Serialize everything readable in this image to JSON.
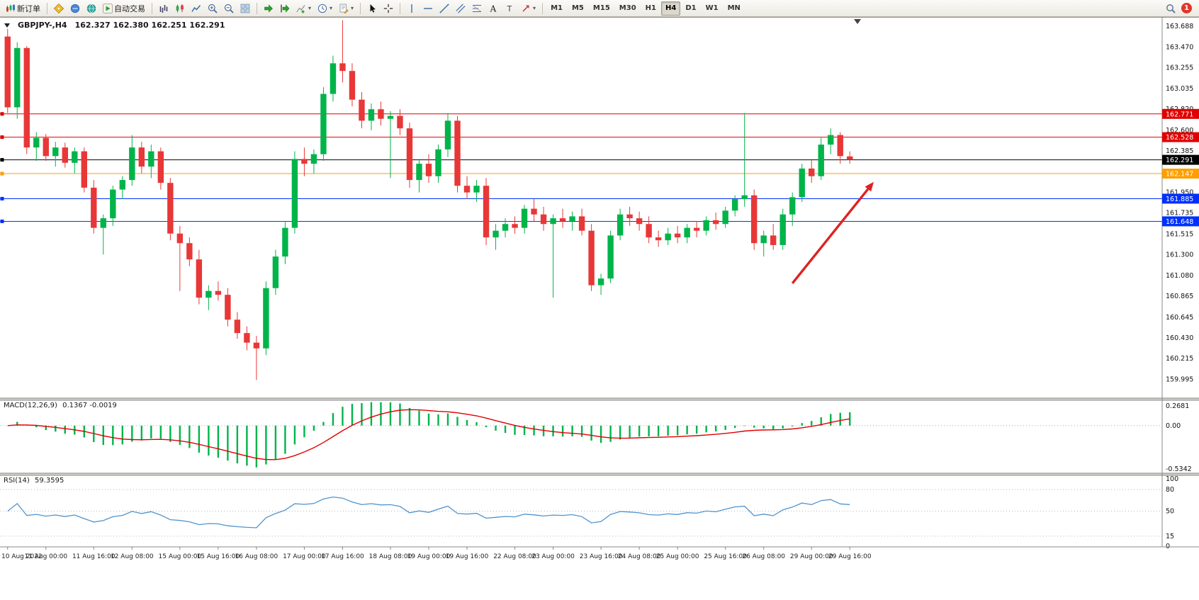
{
  "app": {
    "notification_count": "1"
  },
  "toolbar": {
    "buttons": [
      {
        "type": "button",
        "name": "new-order",
        "glyph": "new-order",
        "label": "新订单"
      },
      {
        "type": "sep"
      },
      {
        "type": "button",
        "name": "metaeditor",
        "glyph": "compass"
      },
      {
        "type": "button",
        "name": "market-watch",
        "glyph": "chat"
      },
      {
        "type": "button",
        "name": "navigator",
        "glyph": "globe"
      },
      {
        "type": "button",
        "name": "autotrading",
        "glyph": "play",
        "label": "自动交易"
      },
      {
        "type": "sep"
      },
      {
        "type": "button",
        "name": "chart-bars",
        "glyph": "bars"
      },
      {
        "type": "button",
        "name": "chart-candlesticks",
        "glyph": "candles"
      },
      {
        "type": "button",
        "name": "chart-line",
        "glyph": "linechart"
      },
      {
        "type": "button",
        "name": "zoom-in",
        "glyph": "zoom-in"
      },
      {
        "type": "button",
        "name": "zoom-out",
        "glyph": "zoom-out"
      },
      {
        "type": "button",
        "name": "tile-windows",
        "glyph": "grid"
      },
      {
        "type": "sep"
      },
      {
        "type": "button",
        "name": "auto-scroll",
        "glyph": "autoscroll"
      },
      {
        "type": "button",
        "name": "chart-shift",
        "glyph": "shift"
      },
      {
        "type": "button",
        "name": "indicators-list",
        "glyph": "indicator",
        "dropdown": true
      },
      {
        "type": "button",
        "name": "periods",
        "glyph": "clock",
        "dropdown": true
      },
      {
        "type": "button",
        "name": "templates",
        "glyph": "template",
        "dropdown": true
      },
      {
        "type": "sep"
      },
      {
        "type": "button",
        "name": "cursor",
        "glyph": "cursor"
      },
      {
        "type": "button",
        "name": "crosshair",
        "glyph": "crosshair"
      },
      {
        "type": "sep"
      },
      {
        "type": "button",
        "name": "vertical-line",
        "glyph": "vline"
      },
      {
        "type": "button",
        "name": "horizontal-line",
        "glyph": "hline"
      },
      {
        "type": "button",
        "name": "trendline",
        "glyph": "trend"
      },
      {
        "type": "button",
        "name": "equidistant-channel",
        "glyph": "channel"
      },
      {
        "type": "button",
        "name": "fibonacci-retracement",
        "glyph": "fibo"
      },
      {
        "type": "button",
        "name": "text",
        "glyph": "textA"
      },
      {
        "type": "button",
        "name": "text-label",
        "glyph": "textT"
      },
      {
        "type": "button",
        "name": "arrows",
        "glyph": "arrows",
        "dropdown": true
      },
      {
        "type": "sep"
      },
      {
        "type": "timeframes"
      }
    ],
    "timeframes": [
      "M1",
      "M5",
      "M15",
      "M30",
      "H1",
      "H4",
      "D1",
      "W1",
      "MN"
    ],
    "active_timeframe": "H4"
  },
  "chart_data": {
    "type": "candlestick",
    "symbol": "GBPJPY-",
    "period": "H4",
    "title": "GBPJPY-,H4",
    "ohlc_text": "162.327 162.380 162.251 162.291",
    "colors": {
      "bull": "#00b44a",
      "bear": "#e83737",
      "current_price": "#000000",
      "resistance": "#e00000",
      "pivot": "#ff9e00",
      "support": "#0030ff",
      "rsi_line": "#4f94cd",
      "macd_signal": "#e00000",
      "macd_histogram": "#00b44a",
      "arrow": "#e02020"
    },
    "y_axis": {
      "min": 159.8,
      "max": 163.784,
      "ticks": [
        163.688,
        163.47,
        163.255,
        163.035,
        162.82,
        162.6,
        162.385,
        162.165,
        161.95,
        161.735,
        161.515,
        161.3,
        161.08,
        160.865,
        160.645,
        160.43,
        160.215,
        159.995
      ]
    },
    "x_axis": {
      "labels": [
        "10 Aug 2022",
        "11 Aug 00:00",
        "11 Aug 16:00",
        "12 Aug 08:00",
        "15 Aug 00:00",
        "15 Aug 16:00",
        "16 Aug 08:00",
        "17 Aug 00:00",
        "17 Aug 16:00",
        "18 Aug 08:00",
        "19 Aug 00:00",
        "19 Aug 16:00",
        "22 Aug 08:00",
        "23 Aug 00:00",
        "23 Aug 16:00",
        "24 Aug 08:00",
        "25 Aug 00:00",
        "25 Aug 16:00",
        "26 Aug 08:00",
        "29 Aug 00:00",
        "29 Aug 16:00"
      ]
    },
    "candles": [
      [
        163.58,
        163.66,
        162.78,
        162.84
      ],
      [
        162.84,
        163.52,
        162.72,
        163.46
      ],
      [
        163.46,
        163.48,
        162.35,
        162.42
      ],
      [
        162.42,
        162.58,
        162.28,
        162.52
      ],
      [
        162.52,
        162.56,
        162.28,
        162.33
      ],
      [
        162.33,
        162.48,
        162.22,
        162.42
      ],
      [
        162.42,
        162.47,
        162.21,
        162.26
      ],
      [
        162.26,
        162.42,
        162.15,
        162.38
      ],
      [
        162.38,
        162.42,
        161.95,
        162.0
      ],
      [
        162.0,
        162.08,
        161.52,
        161.58
      ],
      [
        161.58,
        161.72,
        161.3,
        161.68
      ],
      [
        161.68,
        162.02,
        161.6,
        161.98
      ],
      [
        161.98,
        162.12,
        161.88,
        162.08
      ],
      [
        162.08,
        162.55,
        162.02,
        162.42
      ],
      [
        162.42,
        162.48,
        162.15,
        162.22
      ],
      [
        162.22,
        162.45,
        162.1,
        162.38
      ],
      [
        162.38,
        162.42,
        161.98,
        162.05
      ],
      [
        162.05,
        162.1,
        161.45,
        161.52
      ],
      [
        161.52,
        161.6,
        160.92,
        161.42
      ],
      [
        161.42,
        161.48,
        161.18,
        161.25
      ],
      [
        161.25,
        161.35,
        160.78,
        160.85
      ],
      [
        160.85,
        160.98,
        160.72,
        160.92
      ],
      [
        160.92,
        161.02,
        160.82,
        160.88
      ],
      [
        160.88,
        160.95,
        160.55,
        160.62
      ],
      [
        160.62,
        160.7,
        160.42,
        160.48
      ],
      [
        160.48,
        160.55,
        160.3,
        160.38
      ],
      [
        160.38,
        160.45,
        159.99,
        160.32
      ],
      [
        160.32,
        161.02,
        160.25,
        160.95
      ],
      [
        160.95,
        161.35,
        160.88,
        161.28
      ],
      [
        161.28,
        161.65,
        161.2,
        161.58
      ],
      [
        161.58,
        162.38,
        161.52,
        162.3
      ],
      [
        162.3,
        162.42,
        162.12,
        162.25
      ],
      [
        162.25,
        162.4,
        162.15,
        162.35
      ],
      [
        162.35,
        163.05,
        162.28,
        162.98
      ],
      [
        162.98,
        163.38,
        162.9,
        163.3
      ],
      [
        163.3,
        163.75,
        163.1,
        163.22
      ],
      [
        163.22,
        163.3,
        162.85,
        162.92
      ],
      [
        162.92,
        163.0,
        162.62,
        162.7
      ],
      [
        162.7,
        162.88,
        162.6,
        162.82
      ],
      [
        162.82,
        162.9,
        162.65,
        162.72
      ],
      [
        162.72,
        162.8,
        162.1,
        162.75
      ],
      [
        162.75,
        162.82,
        162.55,
        162.62
      ],
      [
        162.62,
        162.68,
        162.0,
        162.08
      ],
      [
        162.08,
        162.3,
        161.95,
        162.25
      ],
      [
        162.25,
        162.35,
        162.05,
        162.12
      ],
      [
        162.12,
        162.45,
        162.05,
        162.4
      ],
      [
        162.4,
        162.78,
        162.32,
        162.7
      ],
      [
        162.7,
        162.75,
        161.95,
        162.02
      ],
      [
        162.02,
        162.12,
        161.88,
        161.95
      ],
      [
        161.95,
        162.08,
        161.85,
        162.02
      ],
      [
        162.02,
        162.1,
        161.4,
        161.48
      ],
      [
        161.48,
        161.62,
        161.35,
        161.55
      ],
      [
        161.55,
        161.68,
        161.48,
        161.62
      ],
      [
        161.62,
        161.7,
        161.52,
        161.58
      ],
      [
        161.58,
        161.82,
        161.52,
        161.78
      ],
      [
        161.78,
        161.88,
        161.65,
        161.72
      ],
      [
        161.72,
        161.8,
        161.55,
        161.62
      ],
      [
        161.62,
        161.72,
        160.85,
        161.68
      ],
      [
        161.68,
        161.78,
        161.58,
        161.65
      ],
      [
        161.65,
        161.75,
        161.55,
        161.7
      ],
      [
        161.7,
        161.78,
        161.5,
        161.55
      ],
      [
        161.55,
        161.62,
        160.92,
        160.98
      ],
      [
        160.98,
        161.1,
        160.88,
        161.05
      ],
      [
        161.05,
        161.55,
        161.0,
        161.5
      ],
      [
        161.5,
        161.78,
        161.45,
        161.72
      ],
      [
        161.72,
        161.8,
        161.6,
        161.68
      ],
      [
        161.68,
        161.75,
        161.55,
        161.62
      ],
      [
        161.62,
        161.7,
        161.42,
        161.48
      ],
      [
        161.48,
        161.55,
        161.38,
        161.45
      ],
      [
        161.45,
        161.58,
        161.4,
        161.52
      ],
      [
        161.52,
        161.6,
        161.42,
        161.48
      ],
      [
        161.48,
        161.62,
        161.42,
        161.58
      ],
      [
        161.58,
        161.65,
        161.48,
        161.55
      ],
      [
        161.55,
        161.7,
        161.5,
        161.66
      ],
      [
        161.66,
        161.74,
        161.56,
        161.62
      ],
      [
        161.62,
        161.8,
        161.58,
        161.76
      ],
      [
        161.76,
        161.92,
        161.7,
        161.88
      ],
      [
        161.88,
        162.78,
        161.8,
        161.92
      ],
      [
        161.92,
        161.98,
        161.35,
        161.42
      ],
      [
        161.42,
        161.55,
        161.28,
        161.5
      ],
      [
        161.5,
        161.62,
        161.35,
        161.4
      ],
      [
        161.4,
        161.78,
        161.35,
        161.72
      ],
      [
        161.72,
        161.95,
        161.6,
        161.9
      ],
      [
        161.9,
        162.25,
        161.85,
        162.2
      ],
      [
        162.2,
        162.3,
        162.05,
        162.12
      ],
      [
        162.12,
        162.52,
        162.08,
        162.45
      ],
      [
        162.45,
        162.62,
        162.35,
        162.55
      ],
      [
        162.55,
        162.58,
        162.25,
        162.33
      ],
      [
        162.327,
        162.38,
        162.251,
        162.291
      ]
    ],
    "h_lines": [
      {
        "price": 162.771,
        "label": "162.771",
        "color": "#e00000",
        "role": "resistance"
      },
      {
        "price": 162.528,
        "label": "162.528",
        "color": "#e00000",
        "role": "resistance"
      },
      {
        "price": 162.291,
        "label": "162.291",
        "color": "#000000",
        "role": "current-price"
      },
      {
        "price": 162.147,
        "label": "162.147",
        "color": "#ff9e00",
        "role": "pivot"
      },
      {
        "price": 161.885,
        "label": "161.885",
        "color": "#0030ff",
        "role": "support"
      },
      {
        "price": 161.648,
        "label": "161.648",
        "color": "#0030ff",
        "role": "support"
      }
    ],
    "annotations": {
      "trend_arrow": {
        "from_bar": 82,
        "from_price": 161.0,
        "to_bar": 90.5,
        "to_price": 162.06
      },
      "shift_marker_bar": 88.8
    },
    "indicators": {
      "macd": {
        "name": "MACD(12,26,9)",
        "values_text": "0.1367 -0.0019",
        "fast": 12,
        "slow": 26,
        "signal": 9,
        "axis_labels": [
          "0.2681",
          "0.00",
          "-0.5342"
        ]
      },
      "rsi": {
        "name": "RSI(14)",
        "value_text": "59.3595",
        "period": 14,
        "axis_labels": [
          "100",
          "80",
          "50",
          "15",
          "0"
        ],
        "levels": [
          80,
          50,
          15
        ]
      }
    }
  }
}
